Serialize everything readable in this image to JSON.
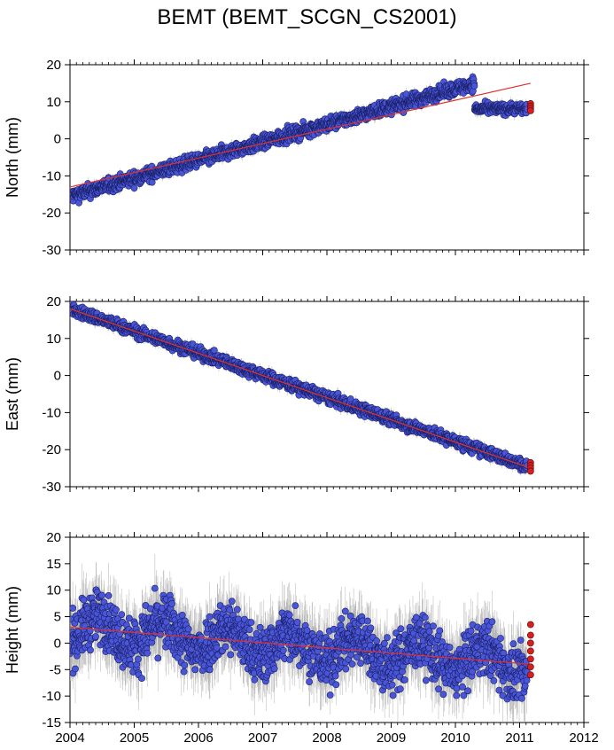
{
  "title": "BEMT (BEMT_SCGN_CS2001)",
  "colors": {
    "point_fill": "#4a56d8",
    "point_stroke": "#1a1f66",
    "recent_point_fill": "#d42020",
    "trend_line": "#e03030",
    "error_bar": "#9a9a9a",
    "frame": "#000000"
  },
  "chart_data": [
    {
      "type": "scatter",
      "ylabel": "North (mm)",
      "xlim": [
        2004,
        2012
      ],
      "ylim": [
        -30,
        20
      ],
      "yticks": [
        20,
        10,
        0,
        -10,
        -20,
        -30
      ],
      "trend": {
        "x": [
          2004.0,
          2011.17
        ],
        "y": [
          -13,
          15
        ]
      },
      "segments": [
        {
          "x0": 2004.0,
          "x1": 2010.3,
          "y0": -15.5,
          "y1": 15.0,
          "noise": 1.3
        },
        {
          "x0": 2010.3,
          "x1": 2011.12,
          "y0": 8.0,
          "y1": 8.2,
          "noise": 1.0
        }
      ],
      "recent": {
        "x": 2011.17,
        "y": [
          9.5,
          8.8,
          8.2,
          7.6
        ]
      },
      "error_bar": 1.2
    },
    {
      "type": "scatter",
      "ylabel": "East (mm)",
      "xlim": [
        2004,
        2012
      ],
      "ylim": [
        -30,
        20
      ],
      "yticks": [
        20,
        10,
        0,
        -10,
        -20,
        -30
      ],
      "trend": {
        "x": [
          2004.0,
          2011.17
        ],
        "y": [
          18,
          -25
        ]
      },
      "segments": [
        {
          "x0": 2004.0,
          "x1": 2011.12,
          "y0": 18.0,
          "y1": -24.5,
          "noise": 1.1
        }
      ],
      "recent": {
        "x": 2011.17,
        "y": [
          -23.5,
          -24.3,
          -25.0,
          -25.8
        ]
      },
      "error_bar": 1.2
    },
    {
      "type": "scatter",
      "ylabel": "Height (mm)",
      "xlim": [
        2004,
        2012
      ],
      "ylim": [
        -15,
        20
      ],
      "yticks": [
        20,
        15,
        10,
        5,
        0,
        -5,
        -10,
        -15
      ],
      "xticks": [
        2004,
        2005,
        2006,
        2007,
        2008,
        2009,
        2010,
        2011,
        2012
      ],
      "trend": {
        "x": [
          2004.0,
          2011.17
        ],
        "y": [
          3,
          -4
        ]
      },
      "segments": [
        {
          "x0": 2004.0,
          "x1": 2011.12,
          "y0": 3.0,
          "y1": -4.0,
          "noise": 3.6,
          "seasonal": 2.5
        }
      ],
      "recent": {
        "x": 2011.17,
        "y": [
          3.5,
          1.5,
          0.0,
          -1.5,
          -3.0,
          -4.5,
          -6.0
        ]
      },
      "error_bar": 4.5
    }
  ]
}
